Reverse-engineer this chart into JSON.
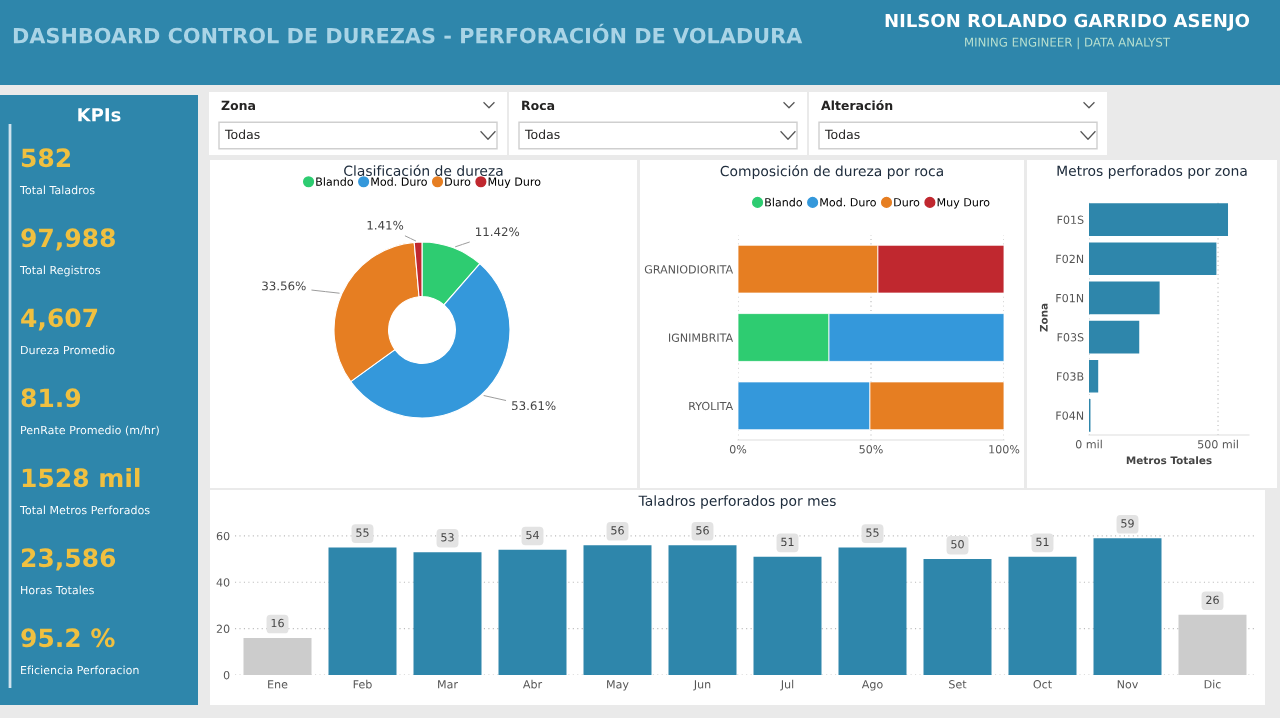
{
  "chart_data": [
    {
      "type": "other",
      "title": "DASHBOARD CONTROL DE DUREZAS - PERFORACIÓN DE VOLADURA",
      "annotations": [
        "NILSON ROLANDO GARRIDO ASENJO",
        "MINING ENGINEER | DATA ANALYST"
      ]
    },
    {
      "type": "other",
      "title": "KPIs",
      "annotations": [
        "582",
        "Total Taladros",
        "97,988",
        "Total Registros",
        "4,607",
        "Dureza Promedio",
        "81.9",
        "PenRate Promedio (m/hr)",
        "1528 mil",
        "Total Metros Perforados",
        "23,586",
        "Horas Totales",
        "95.2 %",
        "Eficiencia Perforacion"
      ]
    },
    {
      "type": "other",
      "annotations": [
        "Zona",
        "Todas",
        "Roca",
        "Todas",
        "Alteración",
        "Todas"
      ]
    },
    {
      "type": "donut",
      "title": "Clasificación de dureza",
      "categories": [
        "Blando",
        "Mod. Duro",
        "Duro",
        "Muy Duro"
      ],
      "values": [
        11.42,
        53.61,
        33.56,
        1.41
      ],
      "colors": [
        "#2ecc71",
        "#3498db",
        "#e67e22",
        "#c0282f"
      ],
      "value_labels": [
        "11.42%",
        "53.61%",
        "33.56%",
        "1.41%"
      ],
      "legend": "top"
    },
    {
      "type": "bar",
      "title": "Composición de dureza por roca",
      "orientation": "horizontal",
      "stacked": true,
      "categories": [
        "GRANIODIORITA",
        "IGNIMBRITA",
        "RYOLITA"
      ],
      "series": [
        {
          "name": "Blando",
          "color": "#2ecc71",
          "values": [
            null,
            34.2,
            null
          ]
        },
        {
          "name": "Mod. Duro",
          "color": "#3498db",
          "values": [
            null,
            65.8,
            49.6
          ]
        },
        {
          "name": "Duro",
          "color": "#e67e22",
          "values": [
            52.6,
            null,
            50.4
          ]
        },
        {
          "name": "Muy Duro",
          "color": "#c0282f",
          "values": [
            47.4,
            null,
            null
          ]
        }
      ],
      "xlim": [
        0,
        100
      ],
      "xticks": [
        {
          "value": 0,
          "label": "0%"
        },
        {
          "value": 50,
          "label": "50%"
        },
        {
          "value": 100,
          "label": "100%"
        }
      ],
      "grid": "x",
      "legend": "top"
    },
    {
      "type": "bar",
      "title": "Metros perforados por zona",
      "orientation": "horizontal",
      "categories": [
        "F01S",
        "F02N",
        "F01N",
        "F03S",
        "F03B",
        "F04N"
      ],
      "values": [
        536,
        491,
        271,
        192,
        33,
        3
      ],
      "color": "#2e86ab",
      "xlim": [
        0,
        620
      ],
      "xticks": [
        {
          "value": 0,
          "label": "0 mil"
        },
        {
          "value": 500,
          "label": "500 mil"
        }
      ],
      "xlabel": "Metros Totales",
      "ylabel": "Zona",
      "grid": "x"
    },
    {
      "type": "bar",
      "title": "Taladros perforados por mes",
      "categories": [
        "Ene",
        "Feb",
        "Mar",
        "Abr",
        "May",
        "Jun",
        "Jul",
        "Ago",
        "Set",
        "Oct",
        "Nov",
        "Dic"
      ],
      "values": [
        16,
        55,
        53,
        54,
        56,
        56,
        51,
        55,
        50,
        51,
        59,
        26
      ],
      "colors": [
        "#cccccc",
        "#2e86ab",
        "#2e86ab",
        "#2e86ab",
        "#2e86ab",
        "#2e86ab",
        "#2e86ab",
        "#2e86ab",
        "#2e86ab",
        "#2e86ab",
        "#2e86ab",
        "#cccccc"
      ],
      "ylim": [
        0,
        66
      ],
      "yticks": [
        0,
        20,
        40,
        60
      ],
      "grid": "y",
      "data_labels": true
    }
  ]
}
